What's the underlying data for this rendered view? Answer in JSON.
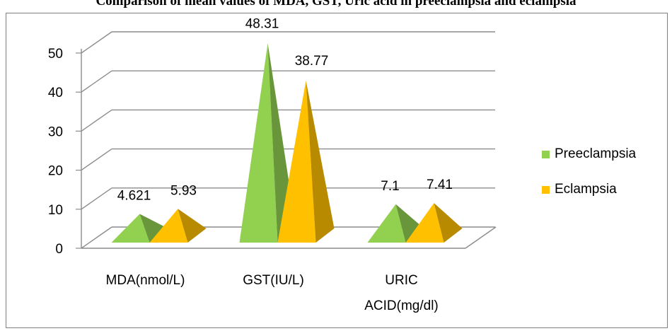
{
  "title": "Comparison of mean values of MDA, GST, Uric acid in preeclampsia and eclampsia",
  "chart_data": {
    "type": "bar",
    "style": "3d-pyramid",
    "categories": [
      "MDA(nmol/L)",
      "GST(IU/L)",
      "URIC ACID(mg/dl)"
    ],
    "category_lines": [
      [
        "MDA(nmol/L)"
      ],
      [
        "GST(IU/L)"
      ],
      [
        "URIC",
        "ACID(mg/dl)"
      ]
    ],
    "series": [
      {
        "name": "Preeclampsia",
        "values": [
          4.621,
          48.31,
          7.1
        ],
        "color": "#92d050"
      },
      {
        "name": "Eclampsia",
        "values": [
          5.93,
          38.77,
          7.41
        ],
        "color": "#ffc000"
      }
    ],
    "data_labels": [
      [
        "4.621",
        "48.31",
        "7.1"
      ],
      [
        "5.93",
        "38.77",
        "7.41"
      ]
    ],
    "yticks": [
      0,
      10,
      20,
      30,
      40,
      50
    ],
    "ylim": [
      0,
      50
    ],
    "grid": true,
    "legend_position": "right"
  }
}
